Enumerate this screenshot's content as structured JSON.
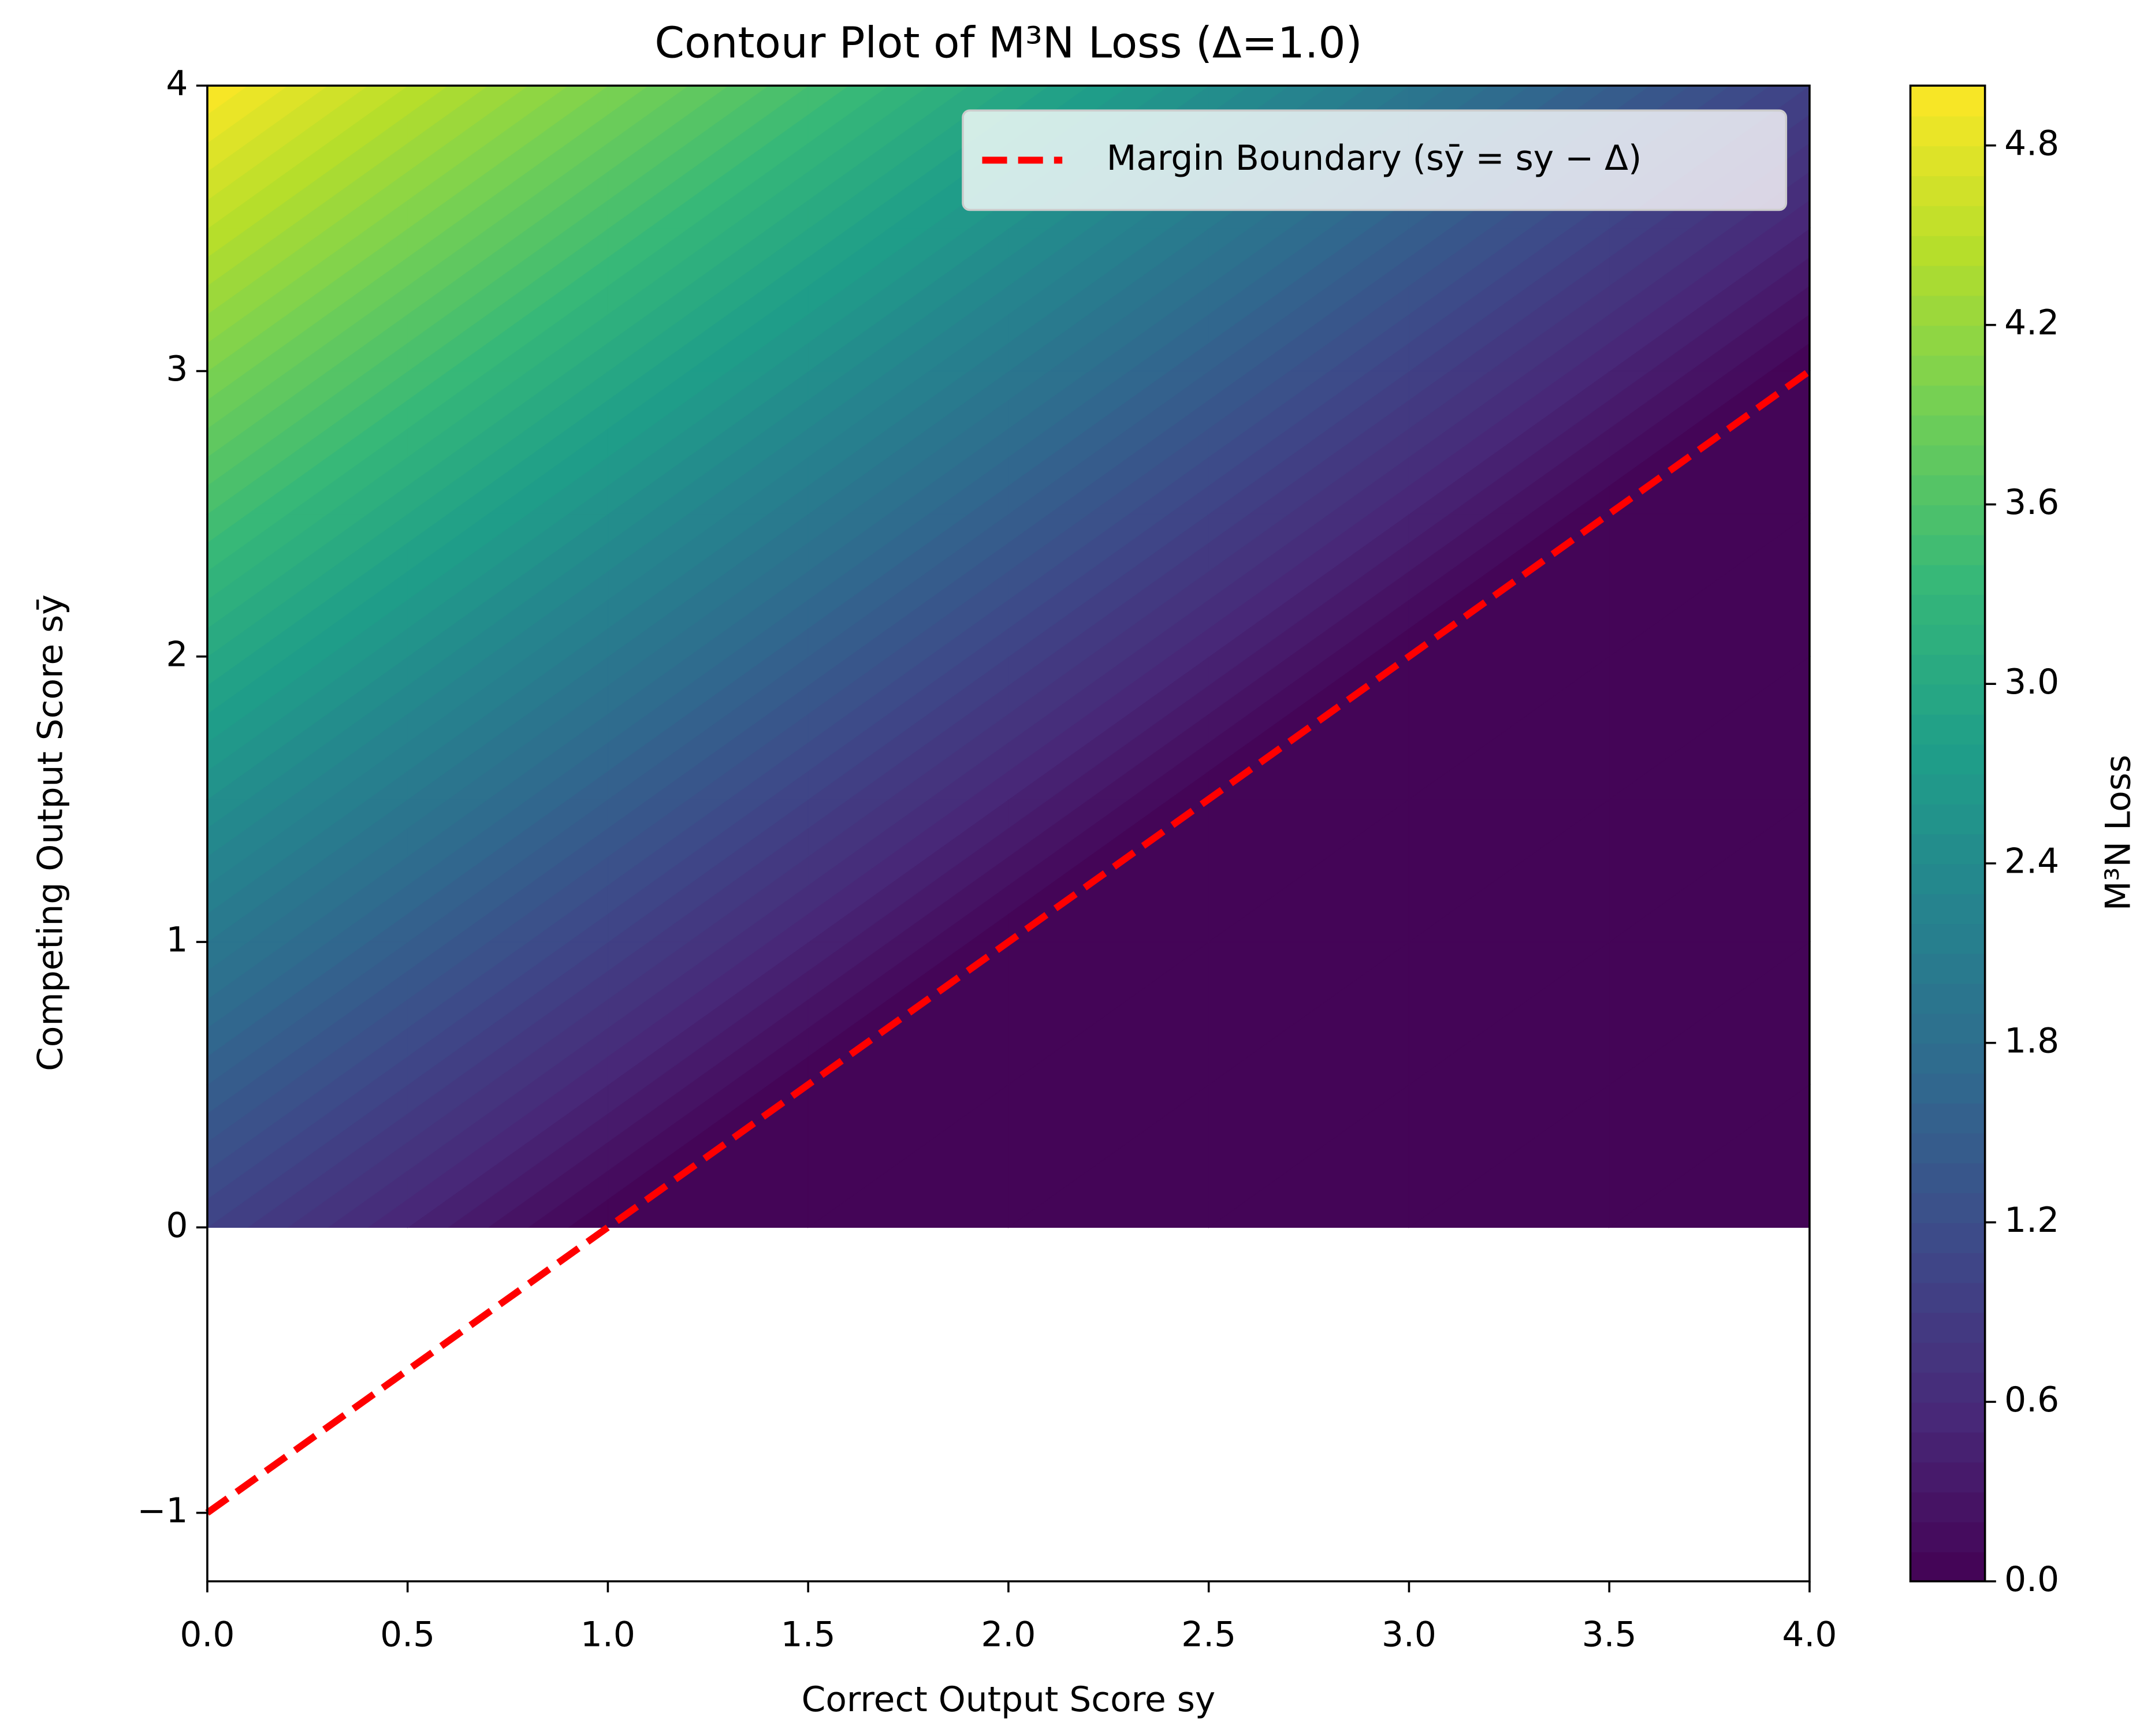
{
  "chart_data": {
    "type": "contourf",
    "title": "Contour Plot of M³N Loss (Δ=1.0)",
    "x_label": "Correct Output Score sy",
    "y_label": "Competing Output Score sȳ",
    "colorbar_label": "M³N Loss",
    "colormap": "viridis",
    "x": [
      0,
      0.5,
      1,
      1.5,
      2,
      2.5,
      3,
      3.5,
      4
    ],
    "y": [
      0,
      0.5,
      1,
      1.5,
      2,
      2.5,
      3,
      3.5,
      4
    ],
    "z": [
      [
        1,
        0.5,
        0,
        0,
        0,
        0,
        0,
        0,
        0
      ],
      [
        1.5,
        1,
        0.5,
        0,
        0,
        0,
        0,
        0,
        0
      ],
      [
        2,
        1.5,
        1,
        0.5,
        0,
        0,
        0,
        0,
        0
      ],
      [
        2.5,
        2,
        1.5,
        1,
        0.5,
        0,
        0,
        0,
        0
      ],
      [
        3,
        2.5,
        2,
        1.5,
        1,
        0.5,
        0,
        0,
        0
      ],
      [
        3.5,
        3,
        2.5,
        2,
        1.5,
        1,
        0.5,
        0,
        0
      ],
      [
        4,
        3.5,
        3,
        2.5,
        2,
        1.5,
        1,
        0.5,
        0
      ],
      [
        4.5,
        4,
        3.5,
        3,
        2.5,
        2,
        1.5,
        1,
        0.5
      ],
      [
        5,
        4.5,
        4,
        3.5,
        3,
        2.5,
        2,
        1.5,
        1
      ]
    ],
    "levels": [
      0,
      0.1,
      0.2,
      0.3,
      0.4,
      0.5,
      0.6,
      0.7,
      0.8,
      0.9,
      1,
      1.1,
      1.2,
      1.3,
      1.4,
      1.5,
      1.6,
      1.7,
      1.8,
      1.9,
      2,
      2.1,
      2.2,
      2.3,
      2.4,
      2.5,
      2.6,
      2.7,
      2.8,
      2.9,
      3,
      3.1,
      3.2,
      3.3,
      3.4,
      3.5,
      3.6,
      3.7,
      3.8,
      3.9,
      4,
      4.1,
      4.2,
      4.3,
      4.4,
      4.5,
      4.6,
      4.7,
      4.8,
      4.9,
      5
    ],
    "series": [
      {
        "name": "Margin Boundary (sȳ = sy − Δ)",
        "color": "#ff0000",
        "x": [
          0,
          4
        ],
        "values": [
          -1,
          3
        ]
      }
    ],
    "legend": "upper right",
    "xlim": [
      0,
      4
    ],
    "ylim": [
      -1.24,
      4
    ],
    "clim": [
      0,
      5
    ],
    "xticks": [
      {
        "value": 0,
        "label": "0.0"
      },
      0.5,
      {
        "value": 1,
        "label": "1.0"
      },
      1.5,
      {
        "value": 2,
        "label": "2.0"
      },
      2.5,
      {
        "value": 3,
        "label": "3.0"
      },
      3.5,
      {
        "value": 4,
        "label": "4.0"
      }
    ],
    "yticks": [
      {
        "value": -1,
        "label": "−1"
      },
      0,
      1,
      2,
      3,
      4
    ],
    "cticks": [
      {
        "value": 0,
        "label": "0.0"
      },
      0.6,
      1.2,
      1.8,
      2.4,
      {
        "value": 3,
        "label": "3.0"
      },
      3.6,
      4.2,
      4.8
    ]
  }
}
